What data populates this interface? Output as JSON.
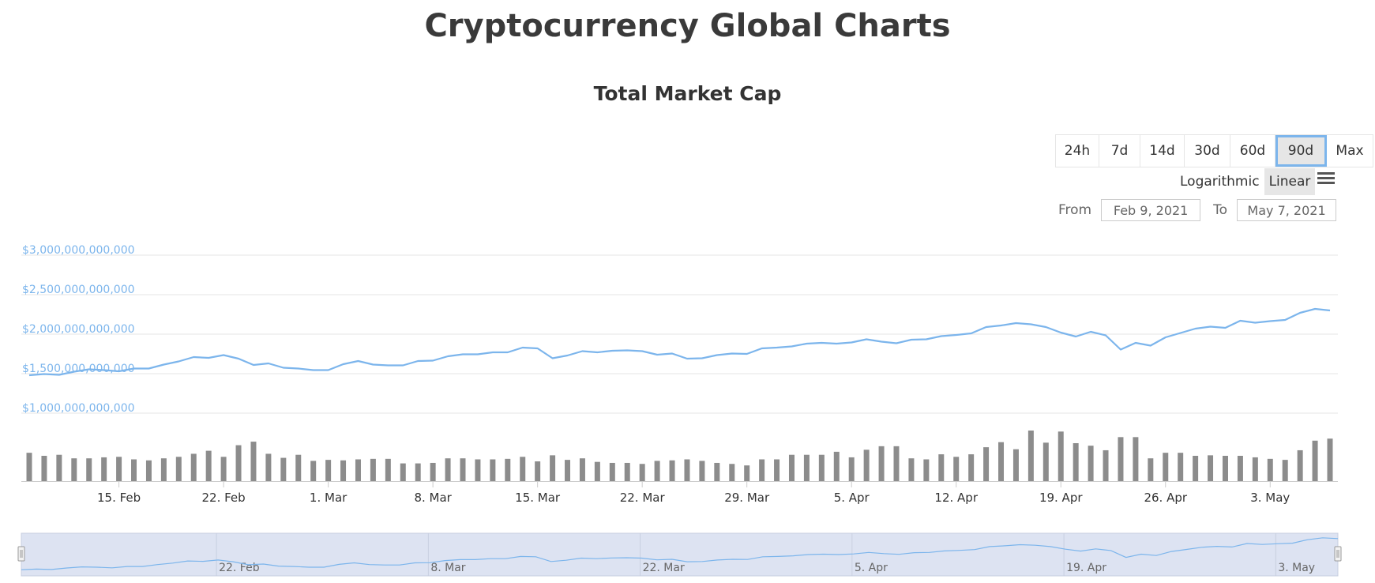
{
  "page_title": "Cryptocurrency Global Charts",
  "range_selector": {
    "buttons": [
      "24h",
      "7d",
      "14d",
      "30d",
      "60d",
      "90d",
      "Max"
    ],
    "selected": "90d"
  },
  "scale": {
    "log_label": "Logarithmic",
    "linear_label": "Linear",
    "selected": "Linear"
  },
  "date_range": {
    "from_label": "From",
    "from_value": "Feb 9, 2021",
    "to_label": "To",
    "to_value": "May 7, 2021"
  },
  "colors": {
    "line": "#7cb5ec",
    "volume": "#8c8c8c",
    "navigator_fill": "#dde3f2",
    "active_outline": "#7cb5ec"
  },
  "icons": {
    "menu": "hamburger-menu-icon"
  },
  "chart_data": {
    "type": "line",
    "title": "Total Market Cap",
    "y_tick_labels": [
      "$3,000,000,000,000",
      "$2,500,000,000,000",
      "$2,000,000,000,000",
      "$1,500,000,000,000",
      "$1,000,000,000,000"
    ],
    "y_ticks": [
      3000000000000,
      2500000000000,
      2000000000000,
      1500000000000,
      1000000000000
    ],
    "x_tick_labels": [
      "15. Feb",
      "22. Feb",
      "1. Mar",
      "8. Mar",
      "15. Mar",
      "22. Mar",
      "29. Mar",
      "5. Apr",
      "12. Apr",
      "19. Apr",
      "26. Apr",
      "3. May"
    ],
    "x_ticks": [
      "2021-02-15",
      "2021-02-22",
      "2021-03-01",
      "2021-03-08",
      "2021-03-15",
      "2021-03-22",
      "2021-03-29",
      "2021-04-05",
      "2021-04-12",
      "2021-04-19",
      "2021-04-26",
      "2021-05-03"
    ],
    "x_range": [
      "2021-02-09",
      "2021-05-07"
    ],
    "navigator_tick_labels": [
      "22. Feb",
      "8. Mar",
      "22. Mar",
      "5. Apr",
      "19. Apr",
      "3. May"
    ],
    "navigator_ticks": [
      "2021-02-22",
      "2021-03-08",
      "2021-03-22",
      "2021-04-05",
      "2021-04-19",
      "2021-05-03"
    ],
    "grid": true,
    "series": [
      {
        "type": "line",
        "dates": [
          "2021-02-09",
          "2021-02-10",
          "2021-02-11",
          "2021-02-12",
          "2021-02-13",
          "2021-02-14",
          "2021-02-15",
          "2021-02-16",
          "2021-02-17",
          "2021-02-18",
          "2021-02-19",
          "2021-02-20",
          "2021-02-21",
          "2021-02-22",
          "2021-02-23",
          "2021-02-24",
          "2021-02-25",
          "2021-02-26",
          "2021-02-27",
          "2021-02-28",
          "2021-03-01",
          "2021-03-02",
          "2021-03-03",
          "2021-03-04",
          "2021-03-05",
          "2021-03-06",
          "2021-03-07",
          "2021-03-08",
          "2021-03-09",
          "2021-03-10",
          "2021-03-11",
          "2021-03-12",
          "2021-03-13",
          "2021-03-14",
          "2021-03-15",
          "2021-03-16",
          "2021-03-17",
          "2021-03-18",
          "2021-03-19",
          "2021-03-20",
          "2021-03-21",
          "2021-03-22",
          "2021-03-23",
          "2021-03-24",
          "2021-03-25",
          "2021-03-26",
          "2021-03-27",
          "2021-03-28",
          "2021-03-29",
          "2021-03-30",
          "2021-03-31",
          "2021-04-01",
          "2021-04-02",
          "2021-04-03",
          "2021-04-04",
          "2021-04-05",
          "2021-04-06",
          "2021-04-07",
          "2021-04-08",
          "2021-04-09",
          "2021-04-10",
          "2021-04-11",
          "2021-04-12",
          "2021-04-13",
          "2021-04-14",
          "2021-04-15",
          "2021-04-16",
          "2021-04-17",
          "2021-04-18",
          "2021-04-19",
          "2021-04-20",
          "2021-04-21",
          "2021-04-22",
          "2021-04-23",
          "2021-04-24",
          "2021-04-25",
          "2021-04-26",
          "2021-04-27",
          "2021-04-28",
          "2021-04-29",
          "2021-04-30",
          "2021-05-01",
          "2021-05-02",
          "2021-05-03",
          "2021-05-04",
          "2021-05-05",
          "2021-05-06",
          "2021-05-07"
        ],
        "values": [
          1480000000000,
          1495000000000,
          1485000000000,
          1525000000000,
          1555000000000,
          1545000000000,
          1530000000000,
          1565000000000,
          1565000000000,
          1615000000000,
          1655000000000,
          1710000000000,
          1700000000000,
          1735000000000,
          1690000000000,
          1610000000000,
          1630000000000,
          1575000000000,
          1565000000000,
          1545000000000,
          1545000000000,
          1620000000000,
          1660000000000,
          1615000000000,
          1605000000000,
          1605000000000,
          1660000000000,
          1665000000000,
          1720000000000,
          1745000000000,
          1745000000000,
          1770000000000,
          1770000000000,
          1830000000000,
          1820000000000,
          1695000000000,
          1730000000000,
          1785000000000,
          1770000000000,
          1790000000000,
          1795000000000,
          1785000000000,
          1740000000000,
          1755000000000,
          1690000000000,
          1695000000000,
          1735000000000,
          1755000000000,
          1750000000000,
          1820000000000,
          1830000000000,
          1845000000000,
          1880000000000,
          1890000000000,
          1880000000000,
          1895000000000,
          1935000000000,
          1905000000000,
          1885000000000,
          1930000000000,
          1935000000000,
          1975000000000,
          1990000000000,
          2010000000000,
          2090000000000,
          2110000000000,
          2140000000000,
          2125000000000,
          2090000000000,
          2020000000000,
          1970000000000,
          2030000000000,
          1985000000000,
          1805000000000,
          1890000000000,
          1855000000000,
          1960000000000,
          2015000000000,
          2070000000000,
          2095000000000,
          2080000000000,
          2170000000000,
          2145000000000,
          2165000000000,
          2180000000000,
          2270000000000,
          2320000000000,
          2300000000000
        ]
      },
      {
        "type": "column",
        "dates": [
          "2021-02-09",
          "2021-02-10",
          "2021-02-11",
          "2021-02-12",
          "2021-02-13",
          "2021-02-14",
          "2021-02-15",
          "2021-02-16",
          "2021-02-17",
          "2021-02-18",
          "2021-02-19",
          "2021-02-20",
          "2021-02-21",
          "2021-02-22",
          "2021-02-23",
          "2021-02-24",
          "2021-02-25",
          "2021-02-26",
          "2021-02-27",
          "2021-02-28",
          "2021-03-01",
          "2021-03-02",
          "2021-03-03",
          "2021-03-04",
          "2021-03-05",
          "2021-03-06",
          "2021-03-07",
          "2021-03-08",
          "2021-03-09",
          "2021-03-10",
          "2021-03-11",
          "2021-03-12",
          "2021-03-13",
          "2021-03-14",
          "2021-03-15",
          "2021-03-16",
          "2021-03-17",
          "2021-03-18",
          "2021-03-19",
          "2021-03-20",
          "2021-03-21",
          "2021-03-22",
          "2021-03-23",
          "2021-03-24",
          "2021-03-25",
          "2021-03-26",
          "2021-03-27",
          "2021-03-28",
          "2021-03-29",
          "2021-03-30",
          "2021-03-31",
          "2021-04-01",
          "2021-04-02",
          "2021-04-03",
          "2021-04-04",
          "2021-04-05",
          "2021-04-06",
          "2021-04-07",
          "2021-04-08",
          "2021-04-09",
          "2021-04-10",
          "2021-04-11",
          "2021-04-12",
          "2021-04-13",
          "2021-04-14",
          "2021-04-15",
          "2021-04-16",
          "2021-04-17",
          "2021-04-18",
          "2021-04-19",
          "2021-04-20",
          "2021-04-21",
          "2021-04-22",
          "2021-04-23",
          "2021-04-24",
          "2021-04-25",
          "2021-04-26",
          "2021-04-27",
          "2021-04-28",
          "2021-04-29",
          "2021-04-30",
          "2021-05-01",
          "2021-05-02",
          "2021-05-03",
          "2021-05-04",
          "2021-05-05",
          "2021-05-06",
          "2021-05-07"
        ],
        "values": [
          0.56,
          0.5,
          0.52,
          0.45,
          0.45,
          0.47,
          0.48,
          0.43,
          0.41,
          0.45,
          0.48,
          0.54,
          0.6,
          0.48,
          0.71,
          0.78,
          0.54,
          0.46,
          0.52,
          0.4,
          0.42,
          0.41,
          0.43,
          0.44,
          0.44,
          0.35,
          0.35,
          0.36,
          0.45,
          0.45,
          0.43,
          0.43,
          0.44,
          0.48,
          0.39,
          0.51,
          0.42,
          0.45,
          0.38,
          0.36,
          0.36,
          0.34,
          0.4,
          0.41,
          0.43,
          0.4,
          0.36,
          0.34,
          0.31,
          0.43,
          0.43,
          0.52,
          0.52,
          0.52,
          0.58,
          0.47,
          0.62,
          0.69,
          0.69,
          0.45,
          0.43,
          0.53,
          0.48,
          0.53,
          0.67,
          0.77,
          0.63,
          1.0,
          0.76,
          0.98,
          0.75,
          0.7,
          0.61,
          0.87,
          0.87,
          0.45,
          0.56,
          0.56,
          0.5,
          0.51,
          0.5,
          0.5,
          0.47,
          0.44,
          0.42,
          0.61,
          0.8,
          0.84
        ]
      }
    ]
  }
}
